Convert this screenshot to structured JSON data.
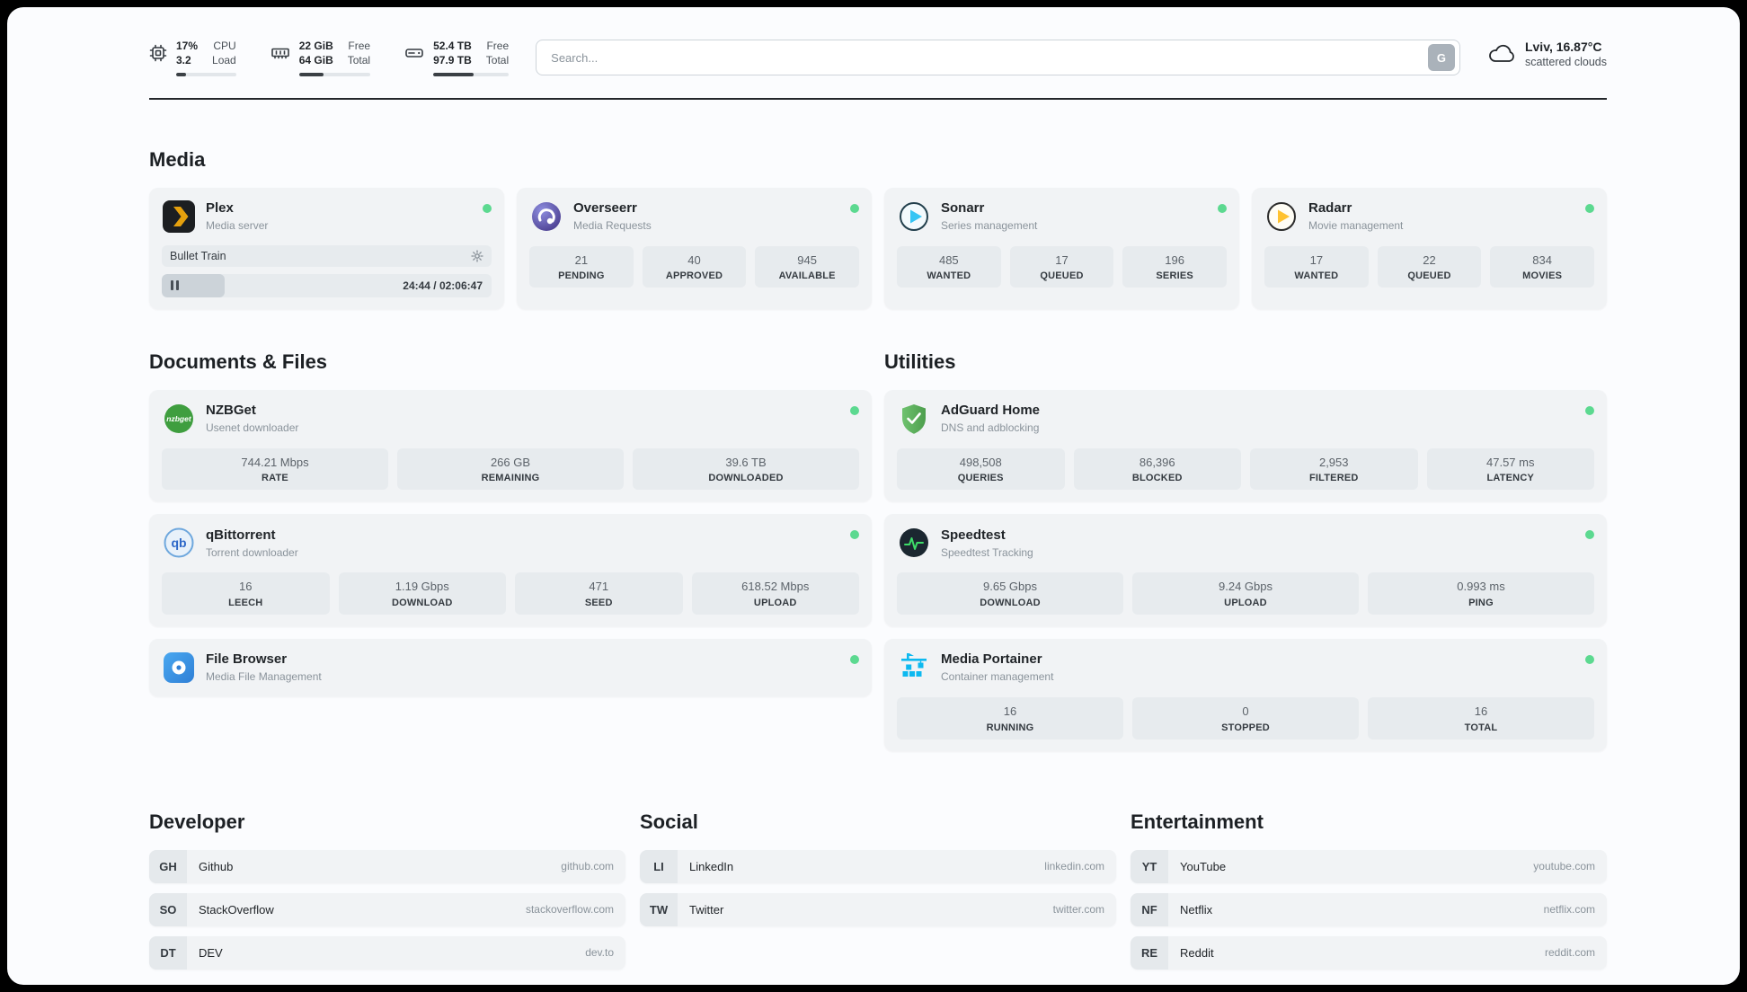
{
  "colors": {
    "status_online": "#5cd990",
    "plex_brand": "#e5a00d",
    "sonarr_brand": "#35c5f4",
    "radarr_brand": "#ffc230",
    "adguard_brand": "#63b663",
    "portainer_brand": "#0db9f0",
    "speedtest_pulse": "#3ddc68"
  },
  "header": {
    "cpu": {
      "value1": "17%",
      "value2": "3.2",
      "label1": "CPU",
      "label2": "Load",
      "fill": 17
    },
    "ram": {
      "value1": "22 GiB",
      "value2": "64 GiB",
      "label1": "Free",
      "label2": "Total",
      "fill": 34
    },
    "disk": {
      "value1": "52.4 TB",
      "value2": "97.9 TB",
      "label1": "Free",
      "label2": "Total",
      "fill": 54
    },
    "search": {
      "placeholder": "Search...",
      "button_label": "G"
    },
    "weather": {
      "location": "Lviv, 16.87°C",
      "condition": "scattered clouds"
    }
  },
  "media": {
    "title": "Media",
    "plex": {
      "name": "Plex",
      "subtitle": "Media server",
      "now_playing": "Bullet Train",
      "time": "24:44 / 02:06:47",
      "progress": 19
    },
    "overseerr": {
      "name": "Overseerr",
      "subtitle": "Media Requests",
      "stats": [
        {
          "value": "21",
          "label": "PENDING"
        },
        {
          "value": "40",
          "label": "APPROVED"
        },
        {
          "value": "945",
          "label": "AVAILABLE"
        }
      ]
    },
    "sonarr": {
      "name": "Sonarr",
      "subtitle": "Series management",
      "stats": [
        {
          "value": "485",
          "label": "WANTED"
        },
        {
          "value": "17",
          "label": "QUEUED"
        },
        {
          "value": "196",
          "label": "SERIES"
        }
      ]
    },
    "radarr": {
      "name": "Radarr",
      "subtitle": "Movie management",
      "stats": [
        {
          "value": "17",
          "label": "WANTED"
        },
        {
          "value": "22",
          "label": "QUEUED"
        },
        {
          "value": "834",
          "label": "MOVIES"
        }
      ]
    }
  },
  "documents": {
    "title": "Documents & Files",
    "nzbget": {
      "name": "NZBGet",
      "subtitle": "Usenet downloader",
      "stats": [
        {
          "value": "744.21 Mbps",
          "label": "RATE"
        },
        {
          "value": "266 GB",
          "label": "REMAINING"
        },
        {
          "value": "39.6 TB",
          "label": "DOWNLOADED"
        }
      ]
    },
    "qbittorrent": {
      "name": "qBittorrent",
      "subtitle": "Torrent downloader",
      "stats": [
        {
          "value": "16",
          "label": "LEECH"
        },
        {
          "value": "1.19 Gbps",
          "label": "DOWNLOAD"
        },
        {
          "value": "471",
          "label": "SEED"
        },
        {
          "value": "618.52 Mbps",
          "label": "UPLOAD"
        }
      ]
    },
    "filebrowser": {
      "name": "File Browser",
      "subtitle": "Media File Management"
    }
  },
  "utilities": {
    "title": "Utilities",
    "adguard": {
      "name": "AdGuard Home",
      "subtitle": "DNS and adblocking",
      "stats": [
        {
          "value": "498,508",
          "label": "QUERIES"
        },
        {
          "value": "86,396",
          "label": "BLOCKED"
        },
        {
          "value": "2,953",
          "label": "FILTERED"
        },
        {
          "value": "47.57 ms",
          "label": "LATENCY"
        }
      ]
    },
    "speedtest": {
      "name": "Speedtest",
      "subtitle": "Speedtest Tracking",
      "stats": [
        {
          "value": "9.65 Gbps",
          "label": "DOWNLOAD"
        },
        {
          "value": "9.24 Gbps",
          "label": "UPLOAD"
        },
        {
          "value": "0.993 ms",
          "label": "PING"
        }
      ]
    },
    "portainer": {
      "name": "Media Portainer",
      "subtitle": "Container management",
      "stats": [
        {
          "value": "16",
          "label": "RUNNING"
        },
        {
          "value": "0",
          "label": "STOPPED"
        },
        {
          "value": "16",
          "label": "TOTAL"
        }
      ]
    }
  },
  "bookmarks": {
    "developer": {
      "title": "Developer",
      "items": [
        {
          "abbr": "GH",
          "name": "Github",
          "url": "github.com"
        },
        {
          "abbr": "SO",
          "name": "StackOverflow",
          "url": "stackoverflow.com"
        },
        {
          "abbr": "DT",
          "name": "DEV",
          "url": "dev.to"
        }
      ]
    },
    "social": {
      "title": "Social",
      "items": [
        {
          "abbr": "LI",
          "name": "LinkedIn",
          "url": "linkedin.com"
        },
        {
          "abbr": "TW",
          "name": "Twitter",
          "url": "twitter.com"
        }
      ]
    },
    "entertainment": {
      "title": "Entertainment",
      "items": [
        {
          "abbr": "YT",
          "name": "YouTube",
          "url": "youtube.com"
        },
        {
          "abbr": "NF",
          "name": "Netflix",
          "url": "netflix.com"
        },
        {
          "abbr": "RE",
          "name": "Reddit",
          "url": "reddit.com"
        }
      ]
    }
  }
}
